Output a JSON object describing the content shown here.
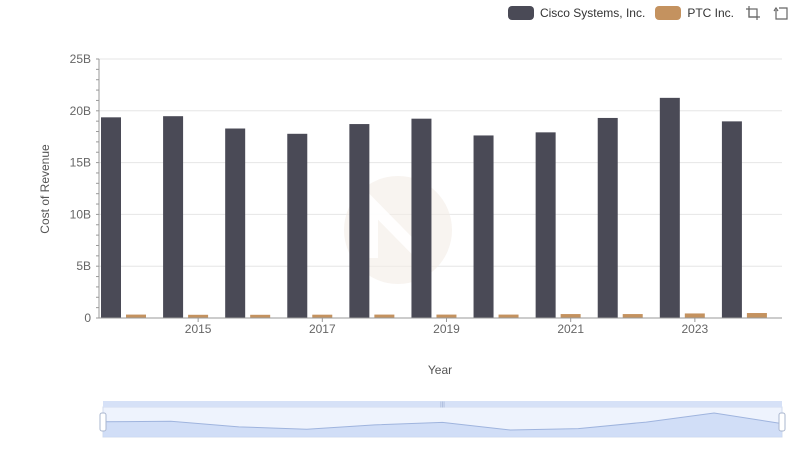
{
  "legend": {
    "items": [
      {
        "label": "Cisco Systems, Inc.",
        "color": "#4a4a56"
      },
      {
        "label": "PTC Inc.",
        "color": "#c4925f"
      }
    ]
  },
  "toolbox": {
    "zoom_icon": "zoom-select-icon",
    "restore_icon": "restore-icon"
  },
  "chart_data": {
    "type": "bar",
    "xlabel": "Year",
    "ylabel": "Cost of Revenue",
    "ylim": [
      0,
      25000000000
    ],
    "y_ticks": [
      "0",
      "5B",
      "10B",
      "15B",
      "20B",
      "25B"
    ],
    "categories": [
      "2014",
      "2015",
      "2016",
      "2017",
      "2018",
      "2019",
      "2020",
      "2021",
      "2022",
      "2023",
      "2024"
    ],
    "x_tick_labels": [
      "2015",
      "2017",
      "2019",
      "2021",
      "2023"
    ],
    "series": [
      {
        "name": "Cisco Systems, Inc.",
        "color": "#4a4a56",
        "values": [
          19370000000,
          19480000000,
          18290000000,
          17780000000,
          18720000000,
          19240000000,
          17620000000,
          17920000000,
          19310000000,
          21250000000,
          18980000000
        ]
      },
      {
        "name": "PTC Inc.",
        "color": "#c4925f",
        "values": [
          330000000,
          310000000,
          310000000,
          320000000,
          330000000,
          330000000,
          330000000,
          380000000,
          380000000,
          440000000,
          480000000
        ]
      }
    ],
    "grid": true,
    "legend_position": "top-right",
    "data_zoom": {
      "start_percent": 0,
      "end_percent": 100
    }
  }
}
